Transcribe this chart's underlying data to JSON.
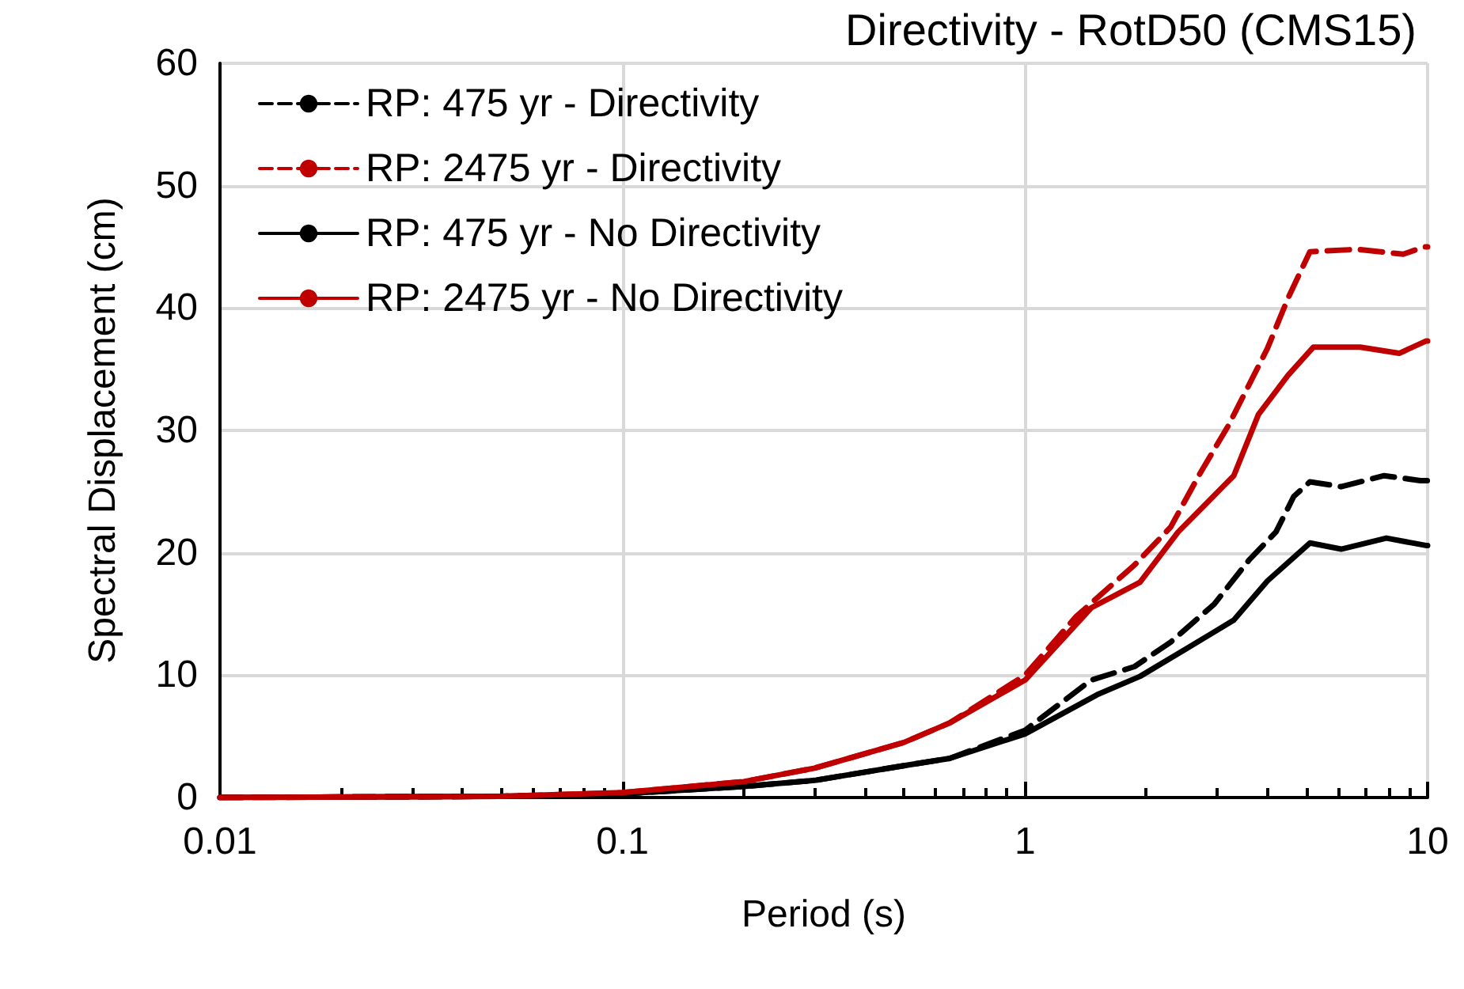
{
  "chart_data": {
    "type": "line",
    "title": "Directivity - RotD50 (CMS15)",
    "xlabel": "Period (s)",
    "ylabel": "Spectral Displacement (cm)",
    "log": "x",
    "xlim": [
      0.01,
      10
    ],
    "xticks": [
      0.01,
      0.1,
      1,
      10
    ],
    "ylim": [
      0,
      60
    ],
    "yticks": [
      0,
      10,
      20,
      30,
      40,
      50,
      60
    ],
    "grid": true,
    "legend": "top left",
    "marker": "none",
    "series": [
      {
        "name": "RP: 475 yr - Directivity",
        "color": "#000000",
        "line_style": "dashed",
        "x": [
          0.01,
          0.05,
          0.1,
          0.2,
          0.3,
          0.5,
          0.65,
          1,
          1.46,
          1.87,
          2.3,
          2.95,
          3.6,
          4.2,
          4.65,
          5.1,
          6.1,
          7.8,
          9.6,
          10
        ],
        "values": [
          0,
          0.1,
          0.3,
          0.9,
          1.4,
          2.6,
          3.2,
          5.5,
          9.6,
          10.7,
          12.7,
          15.8,
          19.4,
          21.7,
          24.6,
          25.8,
          25.4,
          26.3,
          25.9,
          25.9
        ]
      },
      {
        "name": "RP: 2475 yr - Directivity",
        "color": "#c00000",
        "line_style": "dashed",
        "x": [
          0.01,
          0.05,
          0.1,
          0.2,
          0.3,
          0.5,
          0.65,
          1,
          1.34,
          1.87,
          2.3,
          2.7,
          3.2,
          4.0,
          4.5,
          5.1,
          6.7,
          8.7,
          9.8,
          10
        ],
        "values": [
          0,
          0.1,
          0.4,
          1.3,
          2.4,
          4.5,
          6.1,
          10,
          14.8,
          19.0,
          22.1,
          26.3,
          30.4,
          36.7,
          40.8,
          44.6,
          44.8,
          44.4,
          45.0,
          45.0
        ]
      },
      {
        "name": "RP: 475 yr - No Directivity",
        "color": "#000000",
        "line_style": "solid",
        "x": [
          0.01,
          0.05,
          0.1,
          0.2,
          0.3,
          0.5,
          0.65,
          1,
          1.51,
          1.93,
          2.5,
          3.3,
          4.0,
          5.1,
          6.1,
          7.9,
          9.9,
          10
        ],
        "values": [
          0,
          0.1,
          0.3,
          0.9,
          1.4,
          2.6,
          3.2,
          5.2,
          8.4,
          9.9,
          12.1,
          14.5,
          17.7,
          20.8,
          20.3,
          21.2,
          20.6,
          20.6
        ]
      },
      {
        "name": "RP: 2475 yr - No Directivity",
        "color": "#c00000",
        "line_style": "solid",
        "x": [
          0.01,
          0.05,
          0.1,
          0.2,
          0.3,
          0.5,
          0.65,
          1,
          1.46,
          1.93,
          2.4,
          3.1,
          3.3,
          3.8,
          4.5,
          5.2,
          6.8,
          8.5,
          9.9,
          10
        ],
        "values": [
          0,
          0.1,
          0.4,
          1.3,
          2.4,
          4.5,
          6.1,
          9.6,
          15.5,
          17.6,
          21.7,
          25.4,
          26.3,
          31.3,
          34.5,
          36.8,
          36.8,
          36.3,
          37.3,
          37.3
        ]
      }
    ]
  }
}
